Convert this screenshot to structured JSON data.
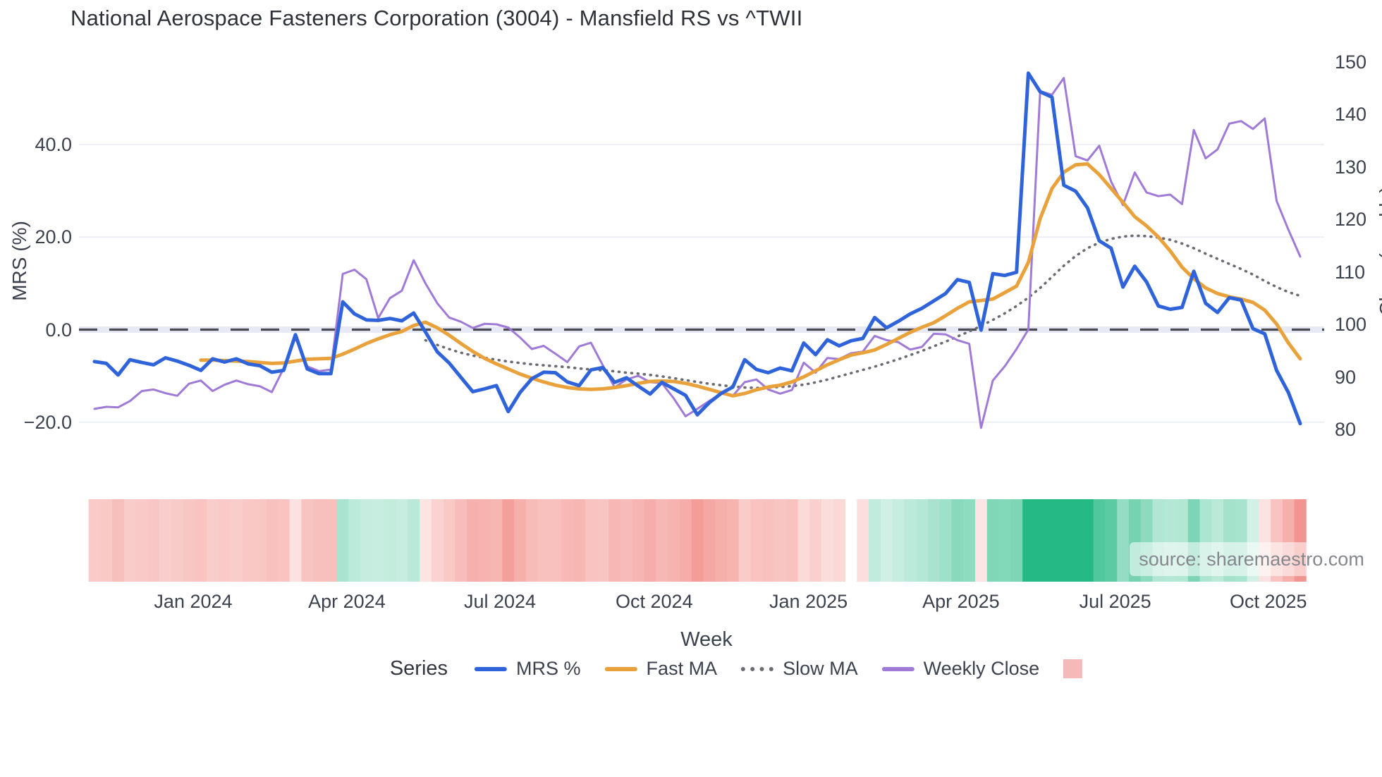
{
  "title": "National Aerospace Fasteners Corporation (3004) - Mansfield RS vs ^TWII",
  "watermark": "source: sharemaestro.com",
  "legend": {
    "title": "Series",
    "items": [
      {
        "label": "MRS %",
        "swatch": "line",
        "color": "#2e63da"
      },
      {
        "label": "Fast MA",
        "swatch": "line",
        "color": "#e9a23b"
      },
      {
        "label": "Slow MA",
        "swatch": "dotted",
        "color": "#6b6b73"
      },
      {
        "label": "Weekly Close",
        "swatch": "line",
        "color": "#9f7ad6"
      },
      {
        "label": "",
        "swatch": "square",
        "color": "#f5b9b9"
      }
    ]
  },
  "colors": {
    "mrs": "#2e63da",
    "fast_ma": "#e9a23b",
    "slow_ma": "#6b6b73",
    "weekly_close": "#9f7ad6",
    "zero_line": "#4a4b52",
    "gridline": "#edeff5",
    "zero_band": "#e7eaf4",
    "heat_positive": "#24b985",
    "heat_negative": "#f0807a",
    "text": "#3c414e"
  },
  "chart_data": {
    "type": "line",
    "title": "National Aerospace Fasteners Corporation (3004) - Mansfield RS vs ^TWII",
    "xlabel": "Week",
    "x_unit": "weekly, Nov 2023 - Oct 2025",
    "weeks_total": 103,
    "x_tick_labels": [
      "Jan 2024",
      "Apr 2024",
      "Jul 2024",
      "Oct 2024",
      "Jan 2025",
      "Apr 2025",
      "Jul 2025",
      "Oct 2025"
    ],
    "x_tick_week_positions": [
      8.35,
      21.35,
      34.3,
      47.35,
      60.4,
      73.3,
      86.35,
      99.3
    ],
    "left_axis": {
      "label": "MRS (%)",
      "ticks": [
        40.0,
        20.0,
        0.0,
        -20.0
      ],
      "tick_labels": [
        "40.0",
        "20.0",
        "0.0",
        "−20.0"
      ],
      "range": [
        -24,
        60
      ]
    },
    "right_axis": {
      "label": "Close (weekly)",
      "ticks": [
        150,
        140,
        130,
        120,
        110,
        100,
        90,
        80
      ],
      "range": [
        76,
        152
      ]
    },
    "grid": "horizontal, left-axis ticks only; dashed dark line at 0",
    "legend_position": "bottom center",
    "series": [
      {
        "name": "MRS %",
        "axis": "left",
        "style": "solid",
        "color": "#2e63da",
        "values": [
          -6.9,
          -7.3,
          -9.8,
          -6.5,
          -7.1,
          -7.6,
          -6.1,
          -6.8,
          -7.7,
          -8.8,
          -6.3,
          -7.0,
          -6.3,
          -7.4,
          -7.8,
          -9.2,
          -8.8,
          -1.1,
          -8.5,
          -9.5,
          -9.5,
          6.0,
          3.4,
          2.1,
          2.0,
          2.4,
          1.9,
          3.6,
          -0.5,
          -4.8,
          -7.2,
          -10.3,
          -13.4,
          -12.8,
          -12.1,
          -17.7,
          -13.6,
          -10.6,
          -9.2,
          -9.3,
          -11.3,
          -12.1,
          -8.7,
          -8.2,
          -11.4,
          -10.4,
          -12.2,
          -13.9,
          -11.4,
          -12.8,
          -14.2,
          -18.4,
          -15.8,
          -13.8,
          -12.4,
          -6.5,
          -8.6,
          -9.3,
          -8.3,
          -8.9,
          -2.9,
          -5.4,
          -2.2,
          -3.5,
          -2.4,
          -1.9,
          2.6,
          0.4,
          1.8,
          3.4,
          4.6,
          6.2,
          7.8,
          10.8,
          10.2,
          -0.1,
          12.1,
          11.7,
          12.4,
          55.4,
          51.4,
          50.2,
          31.2,
          29.9,
          26.3,
          19.2,
          17.6,
          9.2,
          13.7,
          10.3,
          5.1,
          4.4,
          4.8,
          12.6,
          5.7,
          3.7,
          6.9,
          6.4,
          0.2,
          -0.9,
          -8.8,
          -13.6,
          -20.3
        ]
      },
      {
        "name": "Fast MA",
        "axis": "left",
        "style": "solid",
        "color": "#e9a23b",
        "values": [
          null,
          null,
          null,
          null,
          null,
          null,
          null,
          null,
          null,
          -6.6,
          -6.6,
          -6.7,
          -6.8,
          -6.9,
          -7.1,
          -7.3,
          -7.2,
          -6.8,
          -6.4,
          -6.3,
          -6.2,
          -5.3,
          -4.2,
          -3.0,
          -2.0,
          -1.1,
          -0.4,
          0.9,
          1.6,
          0.4,
          -1.2,
          -3.0,
          -4.7,
          -6.2,
          -7.4,
          -8.5,
          -9.6,
          -10.5,
          -11.3,
          -12.0,
          -12.5,
          -12.8,
          -12.9,
          -12.8,
          -12.5,
          -12.1,
          -11.6,
          -11.2,
          -11.1,
          -11.2,
          -11.6,
          -12.2,
          -12.9,
          -13.6,
          -14.3,
          -13.8,
          -13.0,
          -12.4,
          -12.0,
          -11.3,
          -10.2,
          -8.9,
          -7.6,
          -6.5,
          -5.5,
          -5.0,
          -4.4,
          -3.2,
          -1.9,
          -0.6,
          0.5,
          1.5,
          3.0,
          4.6,
          6.0,
          6.3,
          6.6,
          8.0,
          9.4,
          14.5,
          24.0,
          30.5,
          34.0,
          35.6,
          35.8,
          33.5,
          30.5,
          27.5,
          24.4,
          22.4,
          20.0,
          17.0,
          13.5,
          11.0,
          9.0,
          7.8,
          7.1,
          6.6,
          5.9,
          4.2,
          1.2,
          -2.9,
          -6.3
        ]
      },
      {
        "name": "Slow MA",
        "axis": "left",
        "style": "dotted",
        "color": "#6b6b73",
        "values": [
          null,
          null,
          null,
          null,
          null,
          null,
          null,
          null,
          null,
          null,
          null,
          null,
          null,
          null,
          null,
          null,
          null,
          null,
          null,
          null,
          null,
          null,
          null,
          null,
          null,
          null,
          null,
          null,
          -2.3,
          -3.3,
          -4.2,
          -5.0,
          -5.6,
          -6.1,
          -6.5,
          -6.9,
          -7.2,
          -7.5,
          -7.7,
          -7.9,
          -8.1,
          -8.4,
          -8.6,
          -8.8,
          -9.0,
          -9.3,
          -9.5,
          -9.8,
          -10.1,
          -10.5,
          -10.9,
          -11.3,
          -11.7,
          -12.0,
          -12.3,
          -12.5,
          -12.6,
          -12.5,
          -12.4,
          -12.2,
          -11.9,
          -11.4,
          -10.8,
          -10.1,
          -9.4,
          -8.7,
          -8.0,
          -7.2,
          -6.4,
          -5.5,
          -4.6,
          -3.6,
          -2.6,
          -1.5,
          -0.4,
          0.8,
          2.1,
          3.5,
          5.1,
          6.9,
          9.0,
          11.4,
          13.8,
          15.9,
          17.6,
          18.8,
          19.6,
          20.1,
          20.3,
          20.2,
          19.9,
          19.4,
          18.6,
          17.6,
          16.4,
          15.3,
          14.2,
          13.1,
          11.9,
          10.5,
          9.2,
          8.1,
          7.3
        ]
      },
      {
        "name": "Weekly Close",
        "axis": "right",
        "style": "solid",
        "color": "#9f7ad6",
        "values": [
          83.9,
          84.3,
          84.2,
          85.4,
          87.3,
          87.6,
          86.9,
          86.4,
          88.7,
          89.3,
          87.3,
          88.5,
          89.3,
          88.6,
          88.2,
          87.1,
          91.6,
          97.4,
          92.0,
          91.1,
          91.4,
          109.6,
          110.4,
          108.6,
          101.2,
          105.0,
          106.4,
          112.2,
          107.8,
          104.0,
          101.3,
          100.5,
          99.3,
          100.1,
          100.0,
          99.4,
          97.5,
          95.3,
          95.9,
          94.4,
          92.8,
          95.8,
          96.5,
          92.2,
          88.0,
          89.5,
          90.2,
          89.0,
          88.8,
          85.9,
          82.5,
          83.9,
          85.4,
          86.8,
          86.4,
          89.0,
          89.5,
          87.6,
          86.8,
          87.5,
          92.7,
          90.8,
          93.6,
          93.4,
          94.5,
          94.8,
          97.8,
          97.0,
          96.6,
          95.2,
          95.7,
          98.2,
          98.1,
          97.0,
          96.3,
          80.3,
          89.3,
          92.0,
          95.3,
          99.0,
          144.4,
          143.7,
          146.9,
          132.0,
          131.2,
          134.0,
          127.2,
          122.7,
          128.9,
          125.1,
          124.4,
          124.7,
          122.9,
          137.0,
          131.6,
          133.3,
          138.2,
          138.7,
          137.2,
          139.2,
          123.5,
          118.0,
          112.9
        ]
      }
    ],
    "heatmap": {
      "description": "weekly strip below chart colored by MRS % (red negative, green positive)",
      "source_series": "MRS %",
      "positive_color": "#24b985",
      "negative_color": "#f0807a",
      "missing_week_index": 64
    }
  }
}
